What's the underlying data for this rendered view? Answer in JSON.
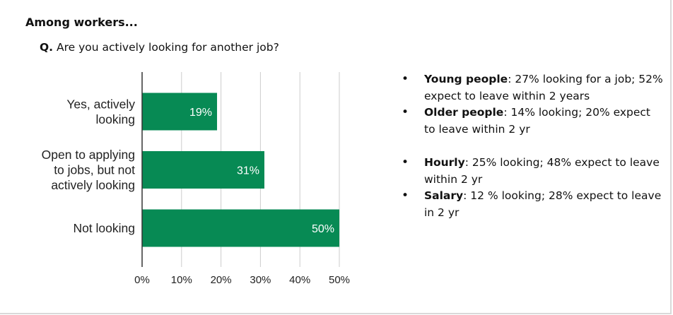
{
  "header": {
    "heading": "Among workers...",
    "question_prefix": "Q.",
    "question_text": " Are you actively looking for another job?"
  },
  "chart_data": {
    "type": "bar",
    "orientation": "horizontal",
    "categories": [
      [
        "Yes, actively",
        "looking"
      ],
      [
        "Open to applying",
        "to jobs, but not",
        "actively looking"
      ],
      [
        "Not looking"
      ]
    ],
    "values": [
      19,
      31,
      50
    ],
    "data_labels": [
      "19%",
      "31%",
      "50%"
    ],
    "xlim": [
      0,
      50
    ],
    "ticks": [
      0,
      10,
      20,
      30,
      40,
      50
    ],
    "tick_labels": [
      "0%",
      "10%",
      "20%",
      "30%",
      "40%",
      "50%"
    ],
    "grid": true,
    "bar_color": "#078a54",
    "grid_color": "#cccccc",
    "axis_color": "#333333"
  },
  "notes": [
    {
      "lead": "Young people",
      "text": ": 27% looking for a job; 52% expect to leave within 2 years"
    },
    {
      "lead": "Older people",
      "text": ": 14% looking; 20% expect to leave within 2 yr"
    },
    {
      "lead": "Hourly",
      "text": ": 25% looking; 48% expect to leave within 2 yr"
    },
    {
      "lead": "Salary",
      "text": ": 12 % looking; 28% expect to leave in 2 yr"
    }
  ]
}
